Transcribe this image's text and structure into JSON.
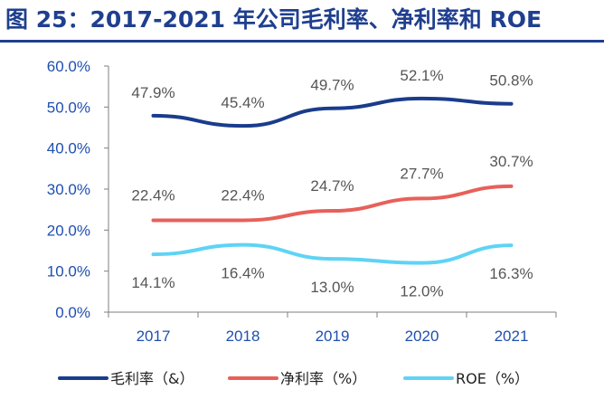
{
  "title": "图 25：2017-2021 年公司毛利率、净利率和 ROE",
  "chart_data": {
    "type": "line",
    "categories": [
      "2017",
      "2018",
      "2019",
      "2020",
      "2021"
    ],
    "y_ticks": [
      "0.0%",
      "10.0%",
      "20.0%",
      "30.0%",
      "40.0%",
      "50.0%",
      "60.0%"
    ],
    "ylim": [
      0,
      60
    ],
    "grid": false,
    "legend_position": "bottom",
    "series": [
      {
        "name": "毛利率（&）",
        "values": [
          47.9,
          45.4,
          49.7,
          52.1,
          50.8
        ],
        "labels": [
          "47.9%",
          "45.4%",
          "49.7%",
          "52.1%",
          "50.8%"
        ],
        "color": "#1a3c8c"
      },
      {
        "name": "净利率（%）",
        "values": [
          22.4,
          22.4,
          24.7,
          27.7,
          30.7
        ],
        "labels": [
          "22.4%",
          "22.4%",
          "24.7%",
          "27.7%",
          "30.7%"
        ],
        "color": "#e8605a"
      },
      {
        "name": "ROE（%）",
        "values": [
          14.1,
          16.4,
          13.0,
          12.0,
          16.3
        ],
        "labels": [
          "14.1%",
          "16.4%",
          "13.0%",
          "12.0%",
          "16.3%"
        ],
        "color": "#5fd3f5"
      }
    ]
  }
}
